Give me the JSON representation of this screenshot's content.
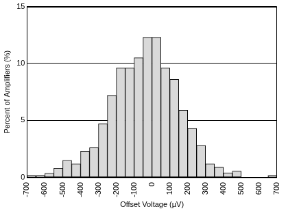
{
  "chart_data": {
    "type": "histogram",
    "x_label": "Offset Voltage (µV)",
    "y_label": "Percent of Amplifiers (%)",
    "bins": [
      -700,
      -650,
      -600,
      -550,
      -500,
      -450,
      -400,
      -350,
      -300,
      -250,
      -200,
      -150,
      -100,
      -50,
      0,
      50,
      100,
      150,
      200,
      250,
      300,
      350,
      400,
      450,
      500,
      550,
      600,
      650,
      700
    ],
    "values": [
      0.15,
      0.15,
      0.35,
      0.8,
      1.5,
      1.2,
      2.3,
      2.6,
      4.7,
      7.2,
      9.6,
      9.6,
      10.5,
      12.3,
      12.3,
      9.6,
      8.6,
      5.9,
      4.3,
      2.8,
      1.2,
      0.9,
      0.4,
      0.55,
      0,
      0,
      0,
      0.15
    ],
    "color": "#d9d9d9",
    "xlim": [
      -700,
      700
    ],
    "xticks": [
      -700,
      -600,
      -500,
      -400,
      -300,
      -200,
      -100,
      0,
      100,
      200,
      300,
      400,
      500,
      600,
      700
    ],
    "ylim": [
      0,
      15
    ],
    "yticks": [
      0,
      5,
      10,
      15
    ],
    "grid": true
  }
}
